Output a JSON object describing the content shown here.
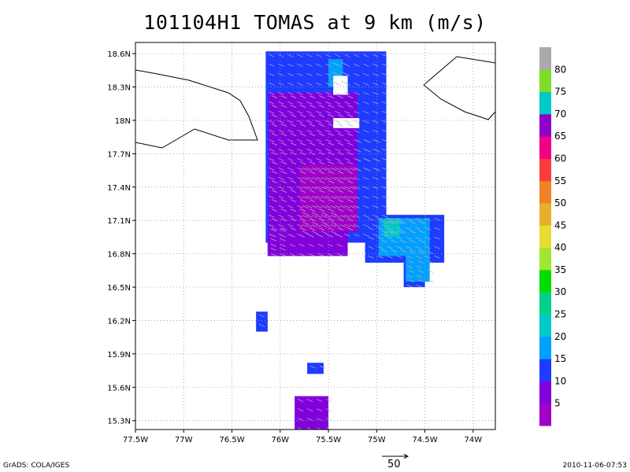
{
  "title": "101104H1 TOMAS at 9 km (m/s)",
  "footer": {
    "left": "GrADS: COLA/IGES",
    "right": "2010-11-06-07:53",
    "reference_vector_label": "50"
  },
  "chart_data": {
    "type": "heatmap",
    "title": "101104H1 TOMAS at 9 km (m/s)",
    "xlabel": "",
    "ylabel": "",
    "x_range_lon": [
      -77.5,
      -73.77
    ],
    "y_range_lat": [
      15.22,
      18.7
    ],
    "grid": true,
    "x_ticks": [
      {
        "value": -77.5,
        "label": "77.5W"
      },
      {
        "value": -77.0,
        "label": "77W"
      },
      {
        "value": -76.5,
        "label": "76.5W"
      },
      {
        "value": -76.0,
        "label": "76W"
      },
      {
        "value": -75.5,
        "label": "75.5W"
      },
      {
        "value": -75.0,
        "label": "75W"
      },
      {
        "value": -74.5,
        "label": "74.5W"
      },
      {
        "value": -74.0,
        "label": "74W"
      }
    ],
    "y_ticks": [
      {
        "value": 15.3,
        "label": "15.3N"
      },
      {
        "value": 15.6,
        "label": "15.6N"
      },
      {
        "value": 15.9,
        "label": "15.9N"
      },
      {
        "value": 16.2,
        "label": "16.2N"
      },
      {
        "value": 16.5,
        "label": "16.5N"
      },
      {
        "value": 16.8,
        "label": "16.8N"
      },
      {
        "value": 17.1,
        "label": "17.1N"
      },
      {
        "value": 17.4,
        "label": "17.4N"
      },
      {
        "value": 17.7,
        "label": "17.7N"
      },
      {
        "value": 18.0,
        "label": "18N"
      },
      {
        "value": 18.3,
        "label": "18.3N"
      },
      {
        "value": 18.6,
        "label": "18.6N"
      }
    ],
    "colorbar": {
      "labels": [
        "5",
        "10",
        "15",
        "20",
        "25",
        "30",
        "35",
        "40",
        "45",
        "50",
        "55",
        "60",
        "65",
        "70",
        "75",
        "80"
      ],
      "colors": [
        "#a000c8",
        "#8200dc",
        "#1e3cff",
        "#00a0ff",
        "#00c8c8",
        "#00d28c",
        "#00dc00",
        "#a0e632",
        "#e6dc32",
        "#e6af2d",
        "#f08228",
        "#fa3c3c",
        "#f00082",
        "#8c00c8",
        "#00c8c8",
        "#7fdc2a",
        "#aaaaaa"
      ]
    },
    "series": [
      {
        "color_index": 2,
        "regions": [
          {
            "lon": [
              -76.15,
              -74.9
            ],
            "lat": [
              16.9,
              18.62
            ]
          },
          {
            "lon": [
              -75.25,
              -74.95
            ],
            "lat": [
              17.55,
              17.85
            ]
          },
          {
            "lon": [
              -75.12,
              -74.3
            ],
            "lat": [
              16.72,
              17.15
            ]
          },
          {
            "lon": [
              -76.13,
              -75.95
            ],
            "lat": [
              16.78,
              17.05
            ]
          },
          {
            "lon": [
              -76.25,
              -76.13
            ],
            "lat": [
              16.1,
              16.28
            ]
          },
          {
            "lon": [
              -75.72,
              -75.55
            ],
            "lat": [
              15.72,
              15.82
            ]
          },
          {
            "lon": [
              -74.72,
              -74.5
            ],
            "lat": [
              16.5,
              16.72
            ]
          }
        ]
      },
      {
        "color_index": 3,
        "regions": [
          {
            "lon": [
              -75.5,
              -75.35
            ],
            "lat": [
              18.3,
              18.55
            ]
          },
          {
            "lon": [
              -74.98,
              -74.45
            ],
            "lat": [
              16.78,
              17.12
            ]
          },
          {
            "lon": [
              -74.7,
              -74.45
            ],
            "lat": [
              16.55,
              16.85
            ]
          }
        ]
      },
      {
        "color_index": 4,
        "regions": [
          {
            "lon": [
              -74.92,
              -74.76
            ],
            "lat": [
              16.95,
              17.12
            ]
          }
        ]
      },
      {
        "color_index": 1,
        "regions": [
          {
            "lon": [
              -76.12,
              -75.2
            ],
            "lat": [
              17.0,
              18.25
            ]
          },
          {
            "lon": [
              -76.13,
              -75.3
            ],
            "lat": [
              16.78,
              17.0
            ]
          },
          {
            "lon": [
              -75.85,
              -75.5
            ],
            "lat": [
              15.22,
              15.52
            ]
          },
          {
            "lon": [
              -75.8,
              -75.4
            ],
            "lat": [
              16.95,
              17.2
            ]
          }
        ]
      },
      {
        "color_index": 0,
        "regions": [
          {
            "lon": [
              -75.8,
              -75.2
            ],
            "lat": [
              17.0,
              17.6
            ]
          }
        ]
      }
    ],
    "reference_vector": {
      "magnitude": 50
    }
  }
}
